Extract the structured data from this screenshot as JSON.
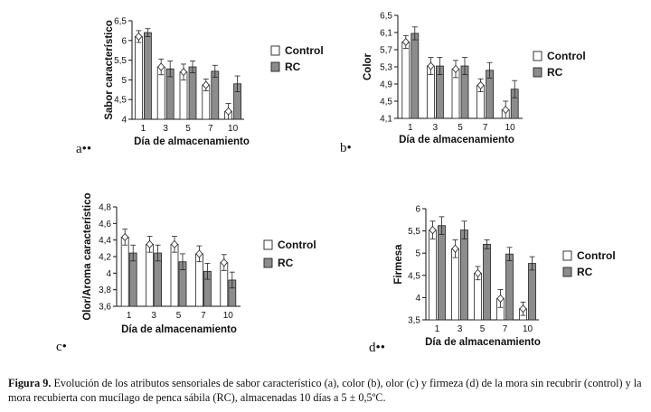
{
  "chart_data": [
    {
      "type": "bar",
      "panel": "a••",
      "ylabel": "Sabor característico",
      "xlabel": "Día de almacenamiento",
      "categories": [
        "1",
        "3",
        "5",
        "7",
        "10"
      ],
      "ylim": [
        4,
        6.5
      ],
      "yticks": [
        "4",
        "4,5",
        "5",
        "5,5",
        "6",
        "6,5"
      ],
      "series": [
        {
          "name": "Control",
          "values": [
            6.1,
            5.33,
            5.2,
            4.87,
            4.2
          ],
          "errors": [
            0.15,
            0.2,
            0.2,
            0.15,
            0.2
          ]
        },
        {
          "name": "RC",
          "values": [
            6.2,
            5.28,
            5.33,
            5.22,
            4.9
          ],
          "errors": [
            0.1,
            0.2,
            0.15,
            0.15,
            0.2
          ]
        }
      ]
    },
    {
      "type": "bar",
      "panel": "b•",
      "ylabel": "Color",
      "xlabel": "Día de almacenamiento",
      "categories": [
        "1",
        "3",
        "5",
        "7",
        "10"
      ],
      "ylim": [
        4.1,
        6.5
      ],
      "yticks": [
        "4,1",
        "4,5",
        "4,9",
        "5,3",
        "5,7",
        "6,1",
        "6,5"
      ],
      "series": [
        {
          "name": "Control",
          "values": [
            5.88,
            5.32,
            5.25,
            4.87,
            4.3
          ],
          "errors": [
            0.15,
            0.2,
            0.2,
            0.15,
            0.2
          ]
        },
        {
          "name": "RC",
          "values": [
            6.08,
            5.32,
            5.32,
            5.22,
            4.78
          ],
          "errors": [
            0.15,
            0.2,
            0.2,
            0.18,
            0.2
          ]
        }
      ]
    },
    {
      "type": "bar",
      "panel": "c•",
      "ylabel": "Olor/Aroma característico",
      "xlabel": "Día de almacenamiento",
      "categories": [
        "1",
        "3",
        "5",
        "7",
        "10"
      ],
      "ylim": [
        3.55,
        4.8
      ],
      "yticks": [
        "3,6",
        "3,8",
        "4",
        "4,2",
        "4,4",
        "4,6",
        "4,8"
      ],
      "series": [
        {
          "name": "Control",
          "values": [
            4.42,
            4.33,
            4.33,
            4.21,
            4.1
          ],
          "errors": [
            0.1,
            0.1,
            0.1,
            0.1,
            0.1
          ]
        },
        {
          "name": "RC",
          "values": [
            4.22,
            4.22,
            4.11,
            3.99,
            3.88
          ],
          "errors": [
            0.1,
            0.1,
            0.1,
            0.1,
            0.1
          ]
        }
      ]
    },
    {
      "type": "bar",
      "panel": "d••",
      "ylabel": "Firmesa",
      "xlabel": "Día de almacenamiento",
      "categories": [
        "1",
        "3",
        "5",
        "7",
        "10"
      ],
      "ylim": [
        3.5,
        6
      ],
      "yticks": [
        "3,5",
        "4",
        "4,5",
        "5",
        "5,5",
        "6"
      ],
      "series": [
        {
          "name": "Control",
          "values": [
            5.52,
            5.1,
            4.55,
            3.98,
            3.75
          ],
          "errors": [
            0.2,
            0.2,
            0.15,
            0.2,
            0.15
          ]
        },
        {
          "name": "RC",
          "values": [
            5.62,
            5.52,
            5.2,
            4.98,
            4.77
          ],
          "errors": [
            0.2,
            0.2,
            0.1,
            0.15,
            0.15
          ]
        }
      ]
    }
  ],
  "colors": {
    "control": "#ffffff",
    "rc": "#8c8c8c",
    "axis": "#111111"
  },
  "caption": {
    "label": "Figura 9.",
    "text": " Evolución de los atributos sensoriales de sabor característico (a), color (b), olor (c) y firmeza (d) de la mora sin recubrir (control) y la mora recubierta con mucílago de penca sábila (RC), almacenadas 10 días a 5 ± 0,5ºC."
  }
}
